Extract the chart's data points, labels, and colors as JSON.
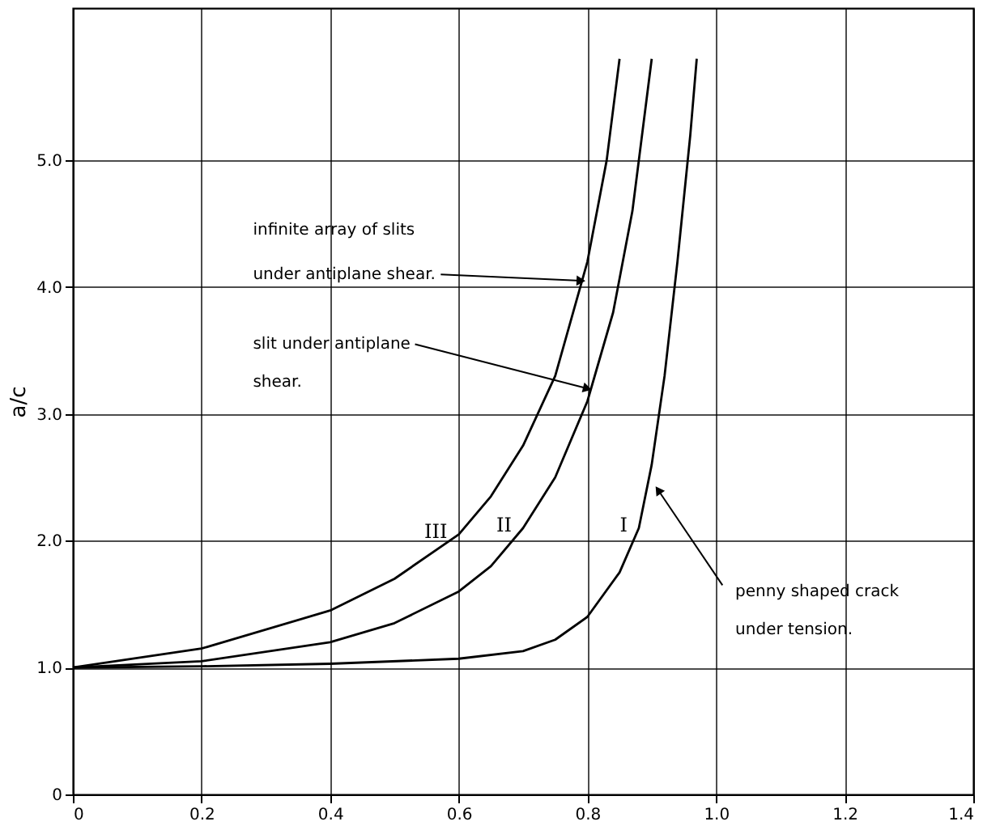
{
  "chart_data": {
    "type": "line",
    "ylabel": "a/c",
    "series": [
      {
        "name": "III",
        "color": "#000000",
        "x": [
          0,
          0.2,
          0.4,
          0.5,
          0.6,
          0.65,
          0.7,
          0.75,
          0.8,
          0.83,
          0.85
        ],
        "values": [
          1.0,
          1.15,
          1.45,
          1.7,
          2.05,
          2.35,
          2.75,
          3.3,
          4.2,
          5.0,
          5.8
        ]
      },
      {
        "name": "II",
        "color": "#000000",
        "x": [
          0,
          0.2,
          0.4,
          0.5,
          0.6,
          0.65,
          0.7,
          0.75,
          0.8,
          0.84,
          0.87,
          0.9
        ],
        "values": [
          1.0,
          1.05,
          1.2,
          1.35,
          1.6,
          1.8,
          2.1,
          2.5,
          3.1,
          3.8,
          4.6,
          5.8
        ]
      },
      {
        "name": "I",
        "color": "#000000",
        "x": [
          0,
          0.2,
          0.4,
          0.6,
          0.7,
          0.75,
          0.8,
          0.85,
          0.88,
          0.9,
          0.92,
          0.94,
          0.96,
          0.97
        ],
        "values": [
          1.0,
          1.01,
          1.03,
          1.07,
          1.13,
          1.22,
          1.4,
          1.75,
          2.1,
          2.6,
          3.3,
          4.2,
          5.2,
          5.8
        ]
      }
    ],
    "annotations": [
      "infinite array of slits",
      {
        "text": "under antiplane shear.",
        "x": 0.79,
        "y": 4.05
      },
      {
        "text": "slit under antiplane",
        "x": 0.8,
        "y": 3.2
      },
      "shear.",
      {
        "text": "penny shaped crack",
        "x": 0.91,
        "y": 2.4
      },
      "under tension."
    ],
    "xlim": [
      0,
      1.4
    ],
    "ylim": [
      0,
      6.2
    ],
    "xticks": [
      0,
      0.2,
      0.4,
      0.6,
      0.8,
      {
        "value": 1,
        "label": "1.0"
      },
      1.2,
      1.4
    ],
    "yticks": [
      0,
      {
        "value": 1,
        "label": "1.0"
      },
      {
        "value": 2,
        "label": "2.0"
      },
      {
        "value": 3,
        "label": "3.0"
      },
      {
        "value": 4,
        "label": "4.0"
      },
      {
        "value": 5,
        "label": "5.0"
      }
    ],
    "grid": true,
    "marker": "none",
    "line_style": "solid"
  }
}
